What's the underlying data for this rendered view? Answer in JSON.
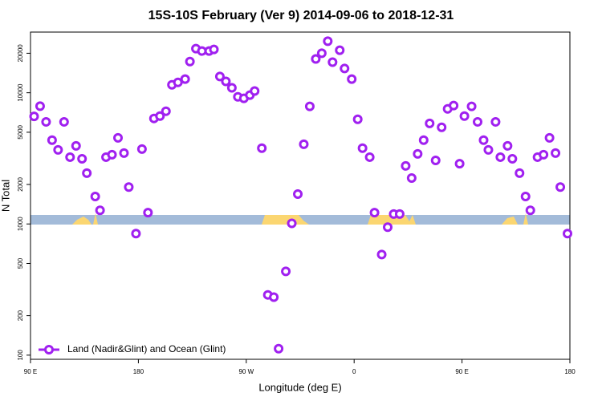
{
  "chart_data": {
    "type": "scatter",
    "title": "15S-10S February (Ver 9)   2014-09-06 to 2018-12-31",
    "x_label": "Longitude (deg E)",
    "y_label": "N Total",
    "log_y": true,
    "legend_position": "bottom-left",
    "xlim": [
      -270,
      180
    ],
    "ylim": [
      93,
      29000
    ],
    "xticks": [
      {
        "value": -270,
        "label": "90 E"
      },
      {
        "value": -180,
        "label": "180"
      },
      {
        "value": -90,
        "label": "90 W"
      },
      0,
      {
        "value": 90,
        "label": "90 E"
      },
      180
    ],
    "yticks": [
      100,
      200,
      500,
      1000,
      2000,
      5000,
      10000,
      20000
    ],
    "x": [
      -267,
      -262,
      -257,
      -252,
      -247,
      -242,
      -237,
      -232,
      -227,
      -223,
      -216,
      -212,
      -207,
      -202,
      -197,
      -192,
      -188,
      -182,
      -177,
      -172,
      -167,
      -162,
      -157,
      -152,
      -147,
      -141,
      -137,
      -132,
      -127,
      -121,
      -117,
      -112,
      -107,
      -102,
      -97,
      -92,
      -87,
      -83,
      -77,
      -72,
      -67,
      -63,
      -57,
      -52,
      -47,
      -42,
      -37,
      -32,
      -27,
      -22,
      -18,
      -12,
      -8,
      -2,
      3,
      7,
      13,
      17,
      23,
      28,
      33,
      38,
      43,
      48,
      53,
      58,
      63,
      68,
      73,
      78,
      83,
      88,
      92,
      98,
      103,
      108,
      112,
      118,
      122,
      128,
      132,
      138,
      143,
      147,
      153,
      158,
      163,
      168,
      172,
      178
    ],
    "series": [
      {
        "name": "Land (Nadir&Glint) and Ocean (Glint)",
        "color": "#a020f0",
        "values": [
          6600,
          7900,
          6000,
          4350,
          3670,
          6000,
          3230,
          3940,
          3140,
          2440,
          1620,
          1270,
          3230,
          3370,
          4530,
          3470,
          1910,
          844,
          3720,
          1220,
          6370,
          6640,
          7230,
          11500,
          12000,
          12700,
          17300,
          21700,
          20800,
          20800,
          21400,
          13300,
          12200,
          10900,
          9310,
          9060,
          9590,
          10300,
          3780,
          288,
          277,
          112,
          435,
          1010,
          1690,
          4050,
          7870,
          18100,
          20000,
          24700,
          17100,
          21100,
          15300,
          12700,
          6280,
          3780,
          3230,
          1220,
          585,
          945,
          1190,
          1190,
          2770,
          2240,
          3420,
          4350,
          5840,
          3050,
          5450,
          7540,
          7980,
          2880,
          6640,
          7870,
          6000,
          4350,
          3670,
          6000,
          3230,
          3940,
          3140,
          2440,
          1620,
          1270,
          3230,
          3370,
          4530,
          3470,
          1910,
          844
        ]
      }
    ]
  }
}
